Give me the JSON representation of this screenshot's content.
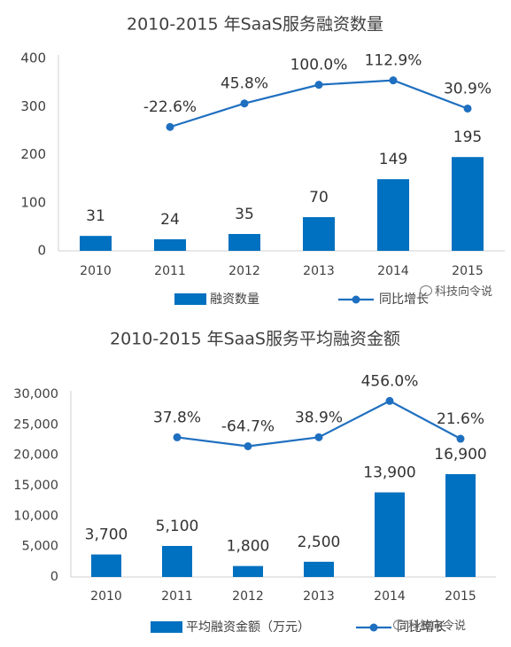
{
  "chart_data": [
    {
      "type": "bar",
      "title": "2010-2015 年SaaS服务融资数量",
      "categories": [
        "2010",
        "2011",
        "2012",
        "2013",
        "2014",
        "2015"
      ],
      "ylim": [
        0,
        400
      ],
      "yticks": [
        "0",
        "100",
        "200",
        "300",
        "400"
      ],
      "ytick_values": [
        0,
        100,
        200,
        300,
        400
      ],
      "series": [
        {
          "name": "融资数量",
          "type": "bar",
          "values": [
            31,
            24,
            35,
            70,
            149,
            195
          ],
          "labels": [
            "31",
            "24",
            "35",
            "70",
            "149",
            "195"
          ]
        },
        {
          "name": "同比增长",
          "type": "line",
          "values": [
            null,
            -22.6,
            45.8,
            100.0,
            112.9,
            30.9
          ],
          "labels": [
            "",
            "-22.6%",
            "45.8%",
            "100.0%",
            "112.9%",
            "30.9%"
          ]
        }
      ],
      "grid": false,
      "legend": "bottom",
      "colors": {
        "bar": "#0070C0",
        "line": "#1F6FC0"
      }
    },
    {
      "type": "bar",
      "title": "2010-2015 年SaaS服务平均融资金额",
      "categories": [
        "2010",
        "2011",
        "2012",
        "2013",
        "2014",
        "2015"
      ],
      "ylim": [
        0,
        30000
      ],
      "yticks": [
        "0",
        "5,000",
        "10,000",
        "15,000",
        "20,000",
        "25,000",
        "30,000"
      ],
      "ytick_values": [
        0,
        5000,
        10000,
        15000,
        20000,
        25000,
        30000
      ],
      "series": [
        {
          "name": "平均融资金额（万元）",
          "type": "bar",
          "values": [
            3700,
            5100,
            1800,
            2500,
            13900,
            16900
          ],
          "labels": [
            "3,700",
            "5,100",
            "1,800",
            "2,500",
            "13,900",
            "16,900"
          ]
        },
        {
          "name": "同比增长",
          "type": "line",
          "values": [
            null,
            37.8,
            -64.7,
            38.9,
            456.0,
            21.6
          ],
          "labels": [
            "",
            "37.8%",
            "-64.7%",
            "38.9%",
            "456.0%",
            "21.6%"
          ]
        }
      ],
      "grid": false,
      "legend": "bottom",
      "colors": {
        "bar": "#0070C0",
        "line": "#1F6FC0"
      }
    }
  ],
  "watermarks": [
    "科技向令说",
    "科技向令说"
  ]
}
